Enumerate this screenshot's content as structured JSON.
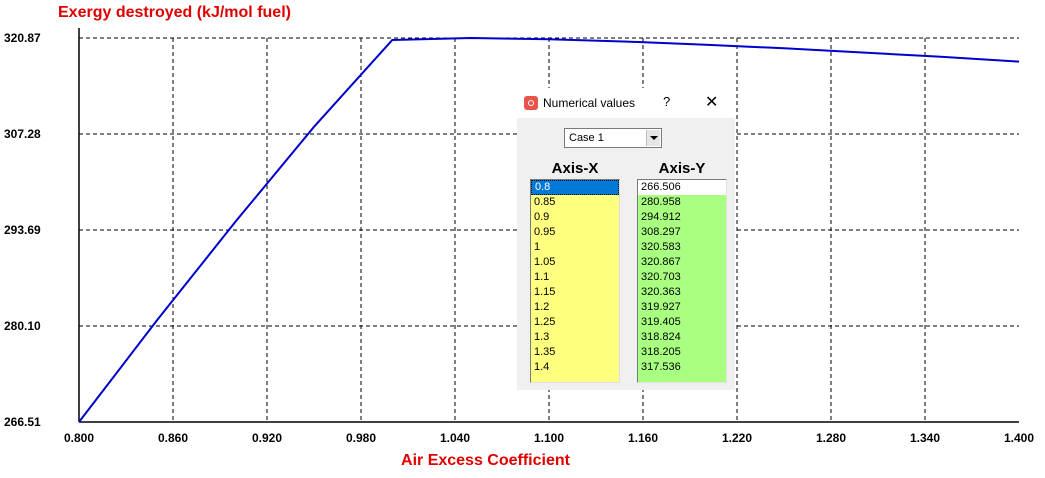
{
  "chart_data": {
    "type": "line",
    "title": "",
    "ylabel": "Exergy destroyed (kJ/mol fuel)",
    "xlabel": "Air Excess Coefficient",
    "xlim": [
      0.8,
      1.4
    ],
    "ylim": [
      266.51,
      320.87
    ],
    "x_ticks": [
      "0.800",
      "0.860",
      "0.920",
      "0.980",
      "1.040",
      "1.100",
      "1.160",
      "1.220",
      "1.280",
      "1.340",
      "1.400"
    ],
    "y_ticks": [
      "320.87",
      "307.28",
      "293.69",
      "280.10",
      "266.51"
    ],
    "grid": true,
    "series": [
      {
        "color": "#0000cc",
        "x": [
          0.8,
          0.85,
          0.9,
          0.95,
          1.0,
          1.05,
          1.1,
          1.15,
          1.2,
          1.25,
          1.3,
          1.35,
          1.4
        ],
        "y": [
          266.506,
          280.958,
          294.912,
          308.297,
          320.583,
          320.867,
          320.703,
          320.363,
          319.927,
          319.405,
          318.824,
          318.205,
          317.536
        ]
      }
    ]
  },
  "dialog": {
    "title": "Numerical values",
    "help": "?",
    "close": "✕",
    "case_select": "Case 1",
    "axis_x_header": "Axis-X",
    "axis_y_header": "Axis-Y",
    "axis_x_values": [
      "0.8",
      "0.85",
      "0.9",
      "0.95",
      "1",
      "1.05",
      "1.1",
      "1.15",
      "1.2",
      "1.25",
      "1.3",
      "1.35",
      "1.4"
    ],
    "axis_y_values": [
      "266.506",
      "280.958",
      "294.912",
      "308.297",
      "320.583",
      "320.867",
      "320.703",
      "320.363",
      "319.927",
      "319.405",
      "318.824",
      "318.205",
      "317.536"
    ]
  }
}
